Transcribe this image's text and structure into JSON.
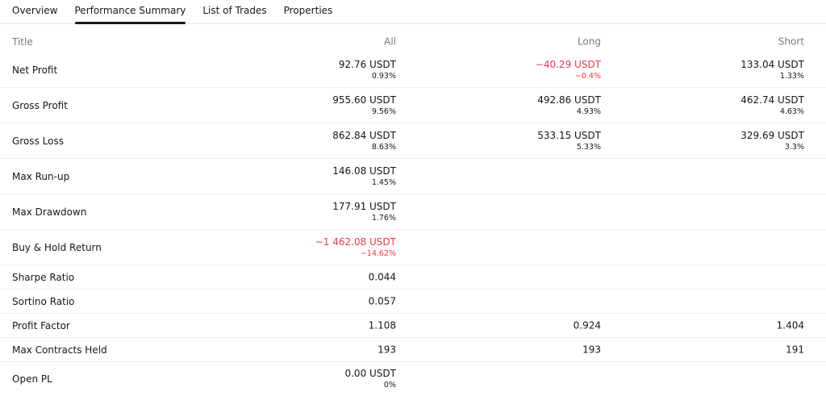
{
  "tabs": [
    "Overview",
    "Performance Summary",
    "List of Trades",
    "Properties"
  ],
  "active_tab": "Performance Summary",
  "headers": {
    "title": "Title",
    "all": "All",
    "long": "Long",
    "short": "Short"
  },
  "rows": [
    {
      "title": "Net Profit",
      "all": {
        "v": "92.76 USDT",
        "p": "0.93%"
      },
      "long": {
        "v": "−40.29 USDT",
        "p": "−0.4%",
        "neg": true
      },
      "short": {
        "v": "133.04 USDT",
        "p": "1.33%"
      }
    },
    {
      "title": "Gross Profit",
      "all": {
        "v": "955.60 USDT",
        "p": "9.56%"
      },
      "long": {
        "v": "492.86 USDT",
        "p": "4.93%"
      },
      "short": {
        "v": "462.74 USDT",
        "p": "4.63%"
      }
    },
    {
      "title": "Gross Loss",
      "all": {
        "v": "862.84 USDT",
        "p": "8.63%"
      },
      "long": {
        "v": "533.15 USDT",
        "p": "5.33%"
      },
      "short": {
        "v": "329.69 USDT",
        "p": "3.3%"
      }
    },
    {
      "title": "Max Run-up",
      "all": {
        "v": "146.08 USDT",
        "p": "1.45%"
      }
    },
    {
      "title": "Max Drawdown",
      "all": {
        "v": "177.91 USDT",
        "p": "1.76%"
      }
    },
    {
      "title": "Buy & Hold Return",
      "all": {
        "v": "−1 462.08 USDT",
        "p": "−14.62%",
        "neg": true
      }
    },
    {
      "title": "Sharpe Ratio",
      "all": {
        "v": "0.044"
      }
    },
    {
      "title": "Sortino Ratio",
      "all": {
        "v": "0.057"
      }
    },
    {
      "title": "Profit Factor",
      "all": {
        "v": "1.108"
      },
      "long": {
        "v": "0.924"
      },
      "short": {
        "v": "1.404"
      }
    },
    {
      "title": "Max Contracts Held",
      "all": {
        "v": "193"
      },
      "long": {
        "v": "193"
      },
      "short": {
        "v": "191"
      }
    },
    {
      "title": "Open PL",
      "all": {
        "v": "0.00 USDT",
        "p": "0%"
      }
    }
  ],
  "colors": {
    "negative": "#f23645",
    "text": "#131722",
    "muted": "#787b86"
  }
}
